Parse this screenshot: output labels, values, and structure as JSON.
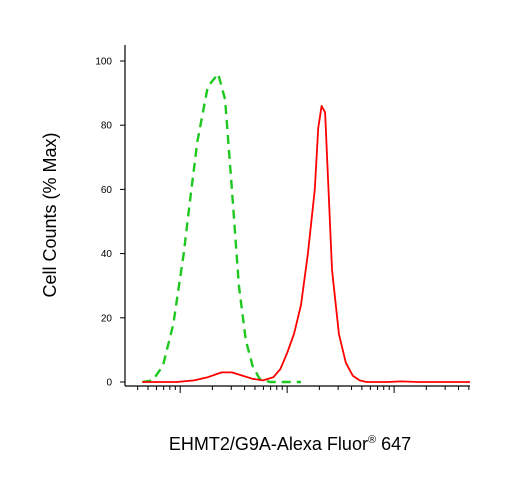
{
  "chart_data": {
    "type": "line",
    "xlabel": "EHMT2/G9A-Alexa Fluor",
    "xlabel_superscript": "®",
    "xlabel_suffix": " 647",
    "ylabel": "Cell Counts (% Max)",
    "x_scale": "log",
    "ylim": [
      0,
      100
    ],
    "y_ticks": [
      "0",
      "20",
      "40",
      "60",
      "80",
      "100"
    ],
    "grid": false,
    "legend": "none",
    "series": [
      {
        "color": "#1ec81e",
        "line_style": "dashed",
        "x": [
          0.05,
          0.08,
          0.11,
          0.14,
          0.17,
          0.19,
          0.21,
          0.24,
          0.27,
          0.29,
          0.31,
          0.33,
          0.35,
          0.37,
          0.39,
          0.42,
          0.45,
          0.48,
          0.51
        ],
        "values": [
          0,
          0.5,
          5,
          18,
          40,
          58,
          75,
          92,
          96,
          88,
          60,
          30,
          13,
          5,
          1,
          0,
          0,
          0,
          0
        ]
      },
      {
        "color": "#ff0000",
        "line_style": "solid",
        "x": [
          0.05,
          0.15,
          0.2,
          0.24,
          0.28,
          0.31,
          0.34,
          0.37,
          0.4,
          0.43,
          0.45,
          0.47,
          0.49,
          0.51,
          0.53,
          0.55,
          0.56,
          0.57,
          0.58,
          0.59,
          0.6,
          0.62,
          0.64,
          0.66,
          0.68,
          0.7,
          0.73,
          0.76,
          0.8,
          0.85,
          0.9,
          0.95,
          1.0
        ],
        "values": [
          0,
          0,
          0.5,
          1.5,
          3,
          3,
          2,
          1,
          0.5,
          1.5,
          4,
          9,
          15,
          24,
          40,
          60,
          79,
          86,
          84,
          60,
          35,
          15,
          6,
          2,
          0.5,
          0,
          0,
          0,
          0.2,
          0,
          0,
          0,
          0
        ]
      }
    ]
  }
}
